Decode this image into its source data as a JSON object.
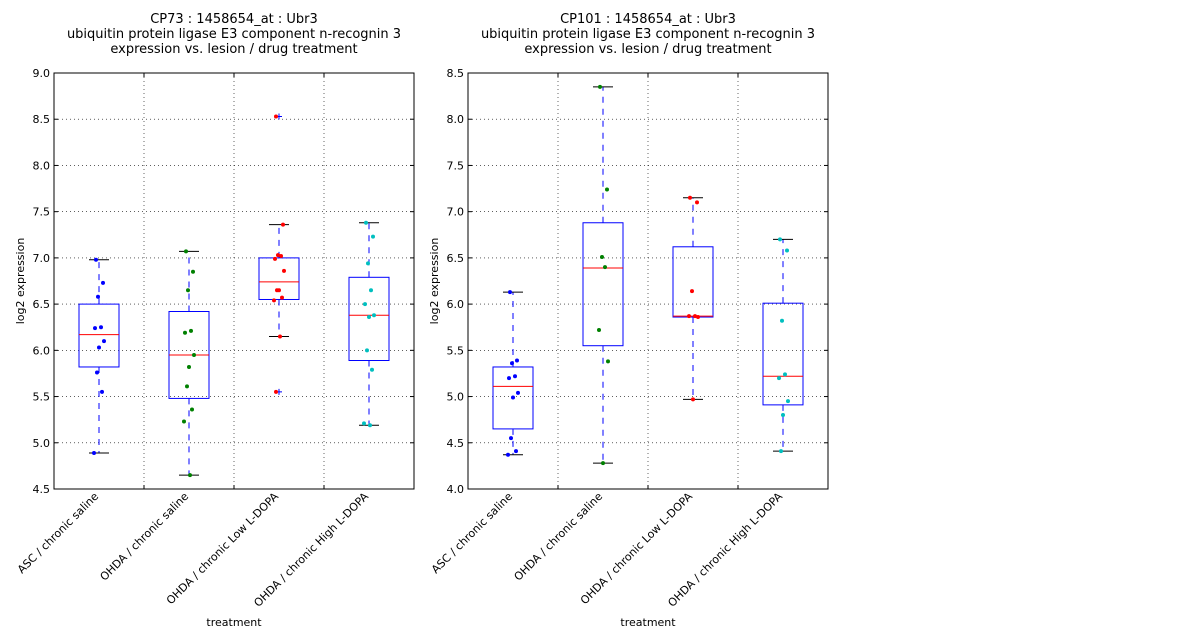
{
  "chart_data": [
    {
      "type": "box",
      "title": [
        "CP73 : 1458654_at : Ubr3",
        "ubiquitin protein ligase E3 component n-recognin 3",
        "expression vs. lesion / drug treatment"
      ],
      "xlabel": "treatment",
      "ylabel": "log2 expression",
      "ylim": [
        4.5,
        9.0
      ],
      "yticks": [
        "4.5",
        "5.0",
        "5.5",
        "6.0",
        "6.5",
        "7.0",
        "7.5",
        "8.0",
        "8.5",
        "9.0"
      ],
      "grid": true,
      "categories": [
        "ASC / chronic saline",
        "OHDA / chronic saline",
        "OHDA / chronic Low L-DOPA",
        "OHDA / chronic High L-DOPA"
      ],
      "point_colors": [
        "#0000ff",
        "#008000",
        "#ff0000",
        "#00bfbf"
      ],
      "box_color": "#0000ff",
      "median_color": "#ff0000",
      "groups": [
        {
          "q1": 5.82,
          "median": 6.17,
          "q3": 6.5,
          "whisker_low": 4.89,
          "whisker_high": 6.98,
          "outliers": [],
          "points": [
            6.98,
            6.73,
            6.58,
            6.25,
            6.24,
            6.1,
            6.03,
            5.76,
            5.55,
            4.89
          ]
        },
        {
          "q1": 5.48,
          "median": 5.95,
          "q3": 6.42,
          "whisker_low": 4.65,
          "whisker_high": 7.07,
          "outliers": [],
          "points": [
            7.07,
            6.85,
            6.65,
            6.21,
            6.19,
            5.95,
            5.82,
            5.61,
            5.36,
            5.23,
            4.65
          ]
        },
        {
          "q1": 6.55,
          "median": 6.74,
          "q3": 7.0,
          "whisker_low": 6.15,
          "whisker_high": 7.36,
          "outliers": [
            8.53,
            5.55
          ],
          "points": [
            8.53,
            7.36,
            7.03,
            7.02,
            6.99,
            6.86,
            6.65,
            6.65,
            6.57,
            6.54,
            6.15,
            5.55
          ]
        },
        {
          "q1": 5.89,
          "median": 6.38,
          "q3": 6.79,
          "whisker_low": 5.19,
          "whisker_high": 7.38,
          "outliers": [],
          "points": [
            7.38,
            7.23,
            6.94,
            6.65,
            6.5,
            6.38,
            6.36,
            6.0,
            5.79,
            5.21,
            5.19
          ]
        }
      ]
    },
    {
      "type": "box",
      "title": [
        "CP101 : 1458654_at : Ubr3",
        "ubiquitin protein ligase E3 component n-recognin 3",
        "expression vs. lesion / drug treatment"
      ],
      "xlabel": "treatment",
      "ylabel": "log2 expression",
      "ylim": [
        4.0,
        8.5
      ],
      "yticks": [
        "4.0",
        "4.5",
        "5.0",
        "5.5",
        "6.0",
        "6.5",
        "7.0",
        "7.5",
        "8.0",
        "8.5"
      ],
      "grid": true,
      "categories": [
        "ASC / chronic saline",
        "OHDA / chronic saline",
        "OHDA / chronic Low L-DOPA",
        "OHDA / chronic High L-DOPA"
      ],
      "point_colors": [
        "#0000ff",
        "#008000",
        "#ff0000",
        "#00bfbf"
      ],
      "box_color": "#0000ff",
      "median_color": "#ff0000",
      "groups": [
        {
          "q1": 4.65,
          "median": 5.11,
          "q3": 5.32,
          "whisker_low": 4.37,
          "whisker_high": 6.13,
          "outliers": [],
          "points": [
            6.13,
            5.39,
            5.36,
            5.22,
            5.2,
            5.04,
            4.99,
            4.55,
            4.41,
            4.37
          ]
        },
        {
          "q1": 5.55,
          "median": 6.39,
          "q3": 6.88,
          "whisker_low": 4.28,
          "whisker_high": 8.35,
          "outliers": [],
          "points": [
            8.35,
            7.24,
            6.51,
            6.4,
            5.72,
            5.38,
            4.28
          ]
        },
        {
          "q1": 5.86,
          "median": 5.87,
          "q3": 6.62,
          "whisker_low": 4.97,
          "whisker_high": 7.15,
          "outliers": [],
          "points": [
            7.15,
            7.1,
            6.14,
            5.87,
            5.87,
            5.86,
            4.97
          ]
        },
        {
          "q1": 4.91,
          "median": 5.22,
          "q3": 6.01,
          "whisker_low": 4.41,
          "whisker_high": 6.7,
          "outliers": [],
          "points": [
            6.7,
            6.58,
            5.82,
            5.24,
            5.2,
            4.95,
            4.8,
            4.41
          ]
        }
      ]
    }
  ]
}
